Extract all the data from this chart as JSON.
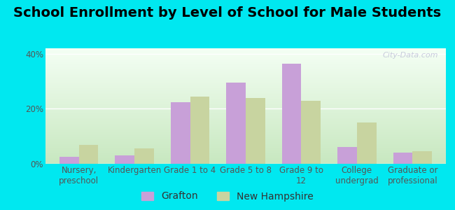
{
  "title": "School Enrollment by Level of School for Male Students",
  "categories": [
    "Nursery,\npreschool",
    "Kindergarten",
    "Grade 1 to 4",
    "Grade 5 to 8",
    "Grade 9 to\n12",
    "College\nundergrad",
    "Graduate or\nprofessional"
  ],
  "grafton": [
    2.5,
    3.0,
    22.5,
    29.5,
    36.5,
    6.0,
    4.0
  ],
  "new_hampshire": [
    7.0,
    5.5,
    24.5,
    24.0,
    23.0,
    15.0,
    4.5
  ],
  "grafton_color": "#c8a0d8",
  "nh_color": "#c8d4a0",
  "ylim": [
    0,
    42
  ],
  "yticks": [
    0,
    20,
    40
  ],
  "ytick_labels": [
    "0%",
    "20%",
    "40%"
  ],
  "background_color": "#00e8f0",
  "bar_width": 0.35,
  "legend_grafton": "Grafton",
  "legend_nh": "New Hampshire",
  "watermark": "City-Data.com",
  "title_fontsize": 14,
  "axis_fontsize": 8.5,
  "legend_fontsize": 10
}
